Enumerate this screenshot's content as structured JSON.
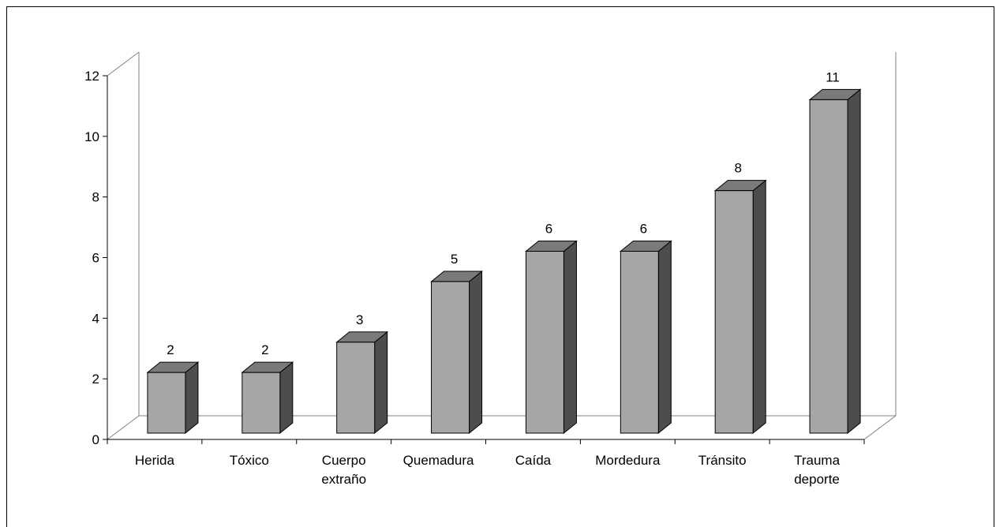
{
  "chart_data": {
    "type": "bar",
    "title": "",
    "xlabel": "",
    "ylabel": "",
    "categories": [
      [
        "Herida"
      ],
      [
        "Tóxico"
      ],
      [
        "Cuerpo",
        "extraño"
      ],
      [
        "Quemadura"
      ],
      [
        "Caída"
      ],
      [
        "Mordedura"
      ],
      [
        "Tránsito"
      ],
      [
        "Trauma",
        "deporte"
      ]
    ],
    "values": [
      2,
      2,
      3,
      5,
      6,
      6,
      8,
      11
    ],
    "ylim": [
      0,
      12
    ],
    "yticks": [
      0,
      2,
      4,
      6,
      8,
      10,
      12
    ],
    "data_labels": true,
    "grid": false,
    "legend": "none",
    "style": "3d-column",
    "colors": {
      "bar_front": "#a6a6a6",
      "bar_top": "#7a7a7a",
      "bar_side": "#4d4d4d",
      "axis": "#000000",
      "wall": "#808080"
    }
  }
}
